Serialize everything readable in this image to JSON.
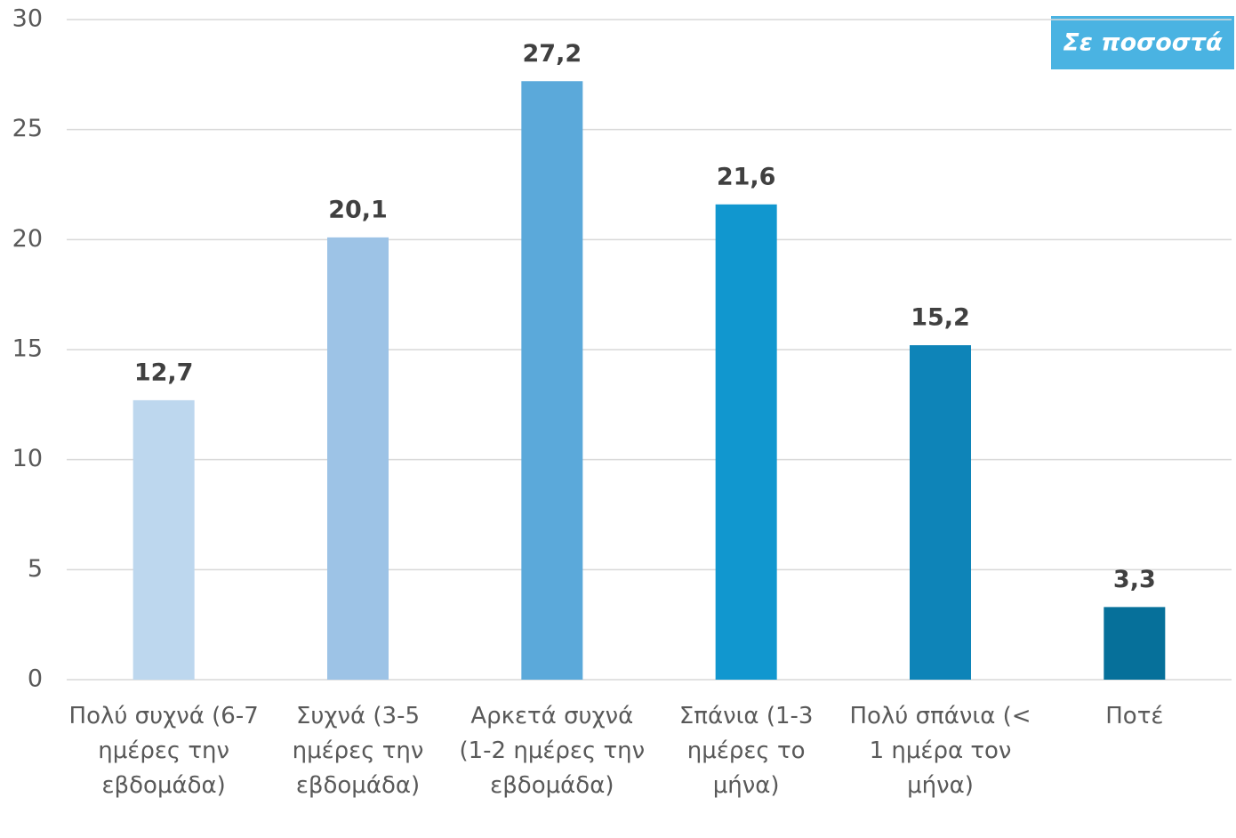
{
  "chart_data": {
    "type": "bar",
    "annotation": "Σε ποσοστά",
    "categories": [
      "Πολύ συχνά (6-7 ημέρες την εβδομάδα)",
      "Συχνά (3-5 ημέρες την εβδομάδα)",
      "Αρκετά συχνά (1-2 ημέρες την εβδομάδα)",
      "Σπάνια (1-3 ημέρες το μήνα)",
      "Πολύ σπάνια (< 1 ημέρα τον μήνα)",
      "Ποτέ"
    ],
    "values": [
      12.7,
      20.1,
      27.2,
      21.6,
      15.2,
      3.3
    ],
    "value_labels": [
      "12,7",
      "20,1",
      "27,2",
      "21,6",
      "15,2",
      "3,3"
    ],
    "colors": [
      "#bdd7ee",
      "#9dc3e6",
      "#5ba9da",
      "#1197cf",
      "#0e84b8",
      "#06709a"
    ],
    "ylim": [
      0,
      30
    ],
    "yticks": [
      0,
      5,
      10,
      15,
      20,
      25,
      30
    ],
    "grid": true
  }
}
